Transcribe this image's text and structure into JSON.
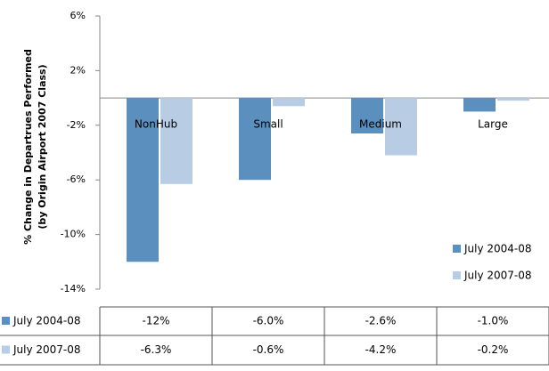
{
  "chart_data": {
    "type": "bar",
    "ylabel": [
      "% Change in Departrues Performed",
      "(by Origin Airport 2007 Class)"
    ],
    "categories": [
      "NonHub",
      "Small",
      "Medium",
      "Large"
    ],
    "series": [
      {
        "name": "July 2004-08",
        "color": "#5b8fbd",
        "values": [
          -12,
          -6.0,
          -2.6,
          -1.0
        ],
        "value_labels": [
          "-12%",
          "-6.0%",
          "-2.6%",
          "-1.0%"
        ]
      },
      {
        "name": "July 2007-08",
        "color": "#b8cce4",
        "values": [
          -6.3,
          -0.6,
          -4.2,
          -0.2
        ],
        "value_labels": [
          "-6.3%",
          "-0.6%",
          "-4.2%",
          "-0.2%"
        ]
      }
    ],
    "ylim": [
      -14,
      6
    ],
    "yticks": [
      {
        "value": 6,
        "label": "6%"
      },
      {
        "value": 2,
        "label": "2%"
      },
      {
        "value": -2,
        "label": "-2%"
      },
      {
        "value": -6,
        "label": "-6%"
      },
      {
        "value": -10,
        "label": "-10%"
      },
      {
        "value": -14,
        "label": "-14%"
      }
    ],
    "legend": "lower right"
  }
}
